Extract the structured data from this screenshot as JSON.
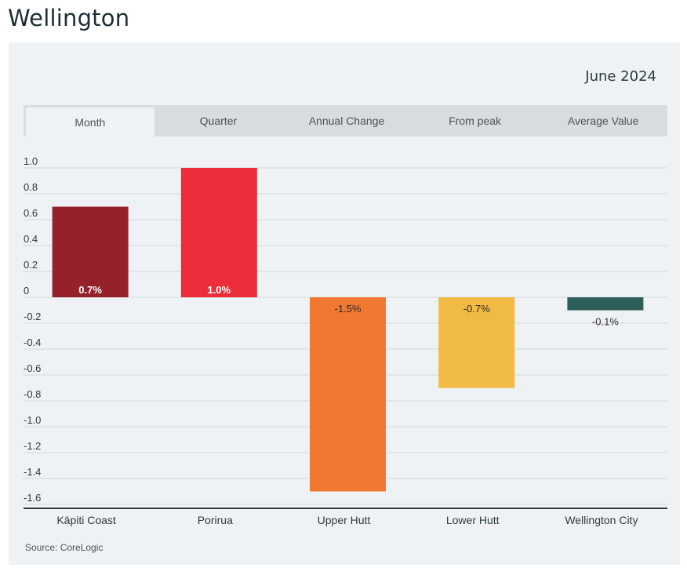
{
  "page": {
    "title": "Wellington",
    "date": "June 2024",
    "source": "Source: CoreLogic"
  },
  "tabs": [
    {
      "label": "Month",
      "active": true
    },
    {
      "label": "Quarter",
      "active": false
    },
    {
      "label": "Annual Change",
      "active": false
    },
    {
      "label": "From peak",
      "active": false
    },
    {
      "label": "Average Value",
      "active": false
    }
  ],
  "chart_data": {
    "type": "bar",
    "title": "",
    "categories": [
      "Kāpiti Coast",
      "Porirua",
      "Upper Hutt",
      "Lower Hutt",
      "Wellington City"
    ],
    "values": [
      0.7,
      1.0,
      -1.5,
      -0.7,
      -0.1
    ],
    "data_labels": [
      "0.7%",
      "1.0%",
      "-1.5%",
      "-0.7%",
      "-0.1%"
    ],
    "colors": [
      "#95212b",
      "#ec2d3a",
      "#f07830",
      "#f1ba42",
      "#2d5e5a"
    ],
    "label_colors": [
      "#ffffff",
      "#ffffff",
      "#2c2c2c",
      "#2c2c2c",
      "#2c2c2c"
    ],
    "yticks": [
      1.0,
      0.8,
      0.6,
      0.4,
      0.2,
      0,
      -0.2,
      -0.4,
      -0.6,
      -0.8,
      -1.0,
      -1.2,
      -1.4,
      -1.6
    ],
    "ytick_labels": [
      "1.0",
      "0.8",
      "0.6",
      "0.4",
      "0.2",
      "0",
      "-0.2",
      "-0.4",
      "-0.6",
      "-0.8",
      "-1.0",
      "-1.2",
      "-1.4",
      "-1.6"
    ],
    "ylim": [
      -1.6,
      1.0
    ],
    "xlabel": "",
    "ylabel": "",
    "grid": true,
    "legend": "none"
  }
}
